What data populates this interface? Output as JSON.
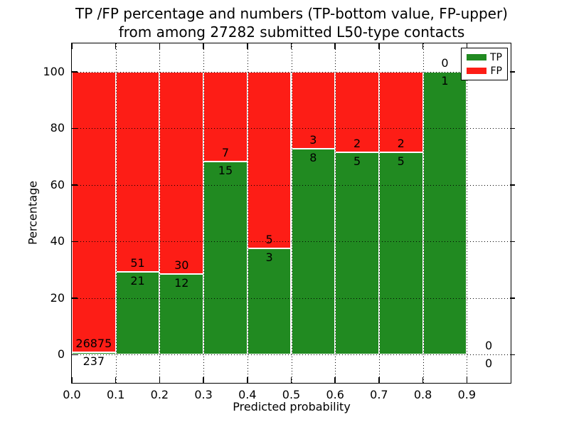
{
  "chart_data": {
    "type": "bar",
    "stacked": true,
    "title_line1": "TP /FP percentage and numbers (TP-bottom value, FP-upper)",
    "title_line2": "from among 27282 submitted L50-type contacts",
    "xlabel": "Predicted probability",
    "ylabel": "Percentage",
    "xlim": [
      0.0,
      1.0
    ],
    "ylim": [
      -10,
      110
    ],
    "x_ticks": [
      "0.0",
      "0.1",
      "0.2",
      "0.3",
      "0.4",
      "0.5",
      "0.6",
      "0.7",
      "0.8",
      "0.9"
    ],
    "y_ticks": [
      "0",
      "20",
      "40",
      "60",
      "80",
      "100"
    ],
    "grid": true,
    "bar_width": 0.1,
    "legend": {
      "position": "upper right",
      "items": [
        {
          "label": "TP",
          "color": "#218A21"
        },
        {
          "label": "FP",
          "color": "#FD1D16"
        }
      ]
    },
    "bins": [
      {
        "x0": 0.0,
        "x1": 0.1,
        "tp": 237,
        "fp": 26875
      },
      {
        "x0": 0.1,
        "x1": 0.2,
        "tp": 21,
        "fp": 51
      },
      {
        "x0": 0.2,
        "x1": 0.3,
        "tp": 12,
        "fp": 30
      },
      {
        "x0": 0.3,
        "x1": 0.4,
        "tp": 15,
        "fp": 7
      },
      {
        "x0": 0.4,
        "x1": 0.5,
        "tp": 3,
        "fp": 5
      },
      {
        "x0": 0.5,
        "x1": 0.6,
        "tp": 8,
        "fp": 3
      },
      {
        "x0": 0.6,
        "x1": 0.7,
        "tp": 5,
        "fp": 2
      },
      {
        "x0": 0.7,
        "x1": 0.8,
        "tp": 5,
        "fp": 2
      },
      {
        "x0": 0.8,
        "x1": 0.9,
        "tp": 1,
        "fp": 0
      },
      {
        "x0": 0.9,
        "x1": 1.0,
        "tp": 0,
        "fp": 0
      }
    ],
    "colors": {
      "tp": "#218A21",
      "fp": "#FD1D16",
      "grid": "#000000",
      "frame": "#000000",
      "background": "#FFFFFF"
    }
  }
}
